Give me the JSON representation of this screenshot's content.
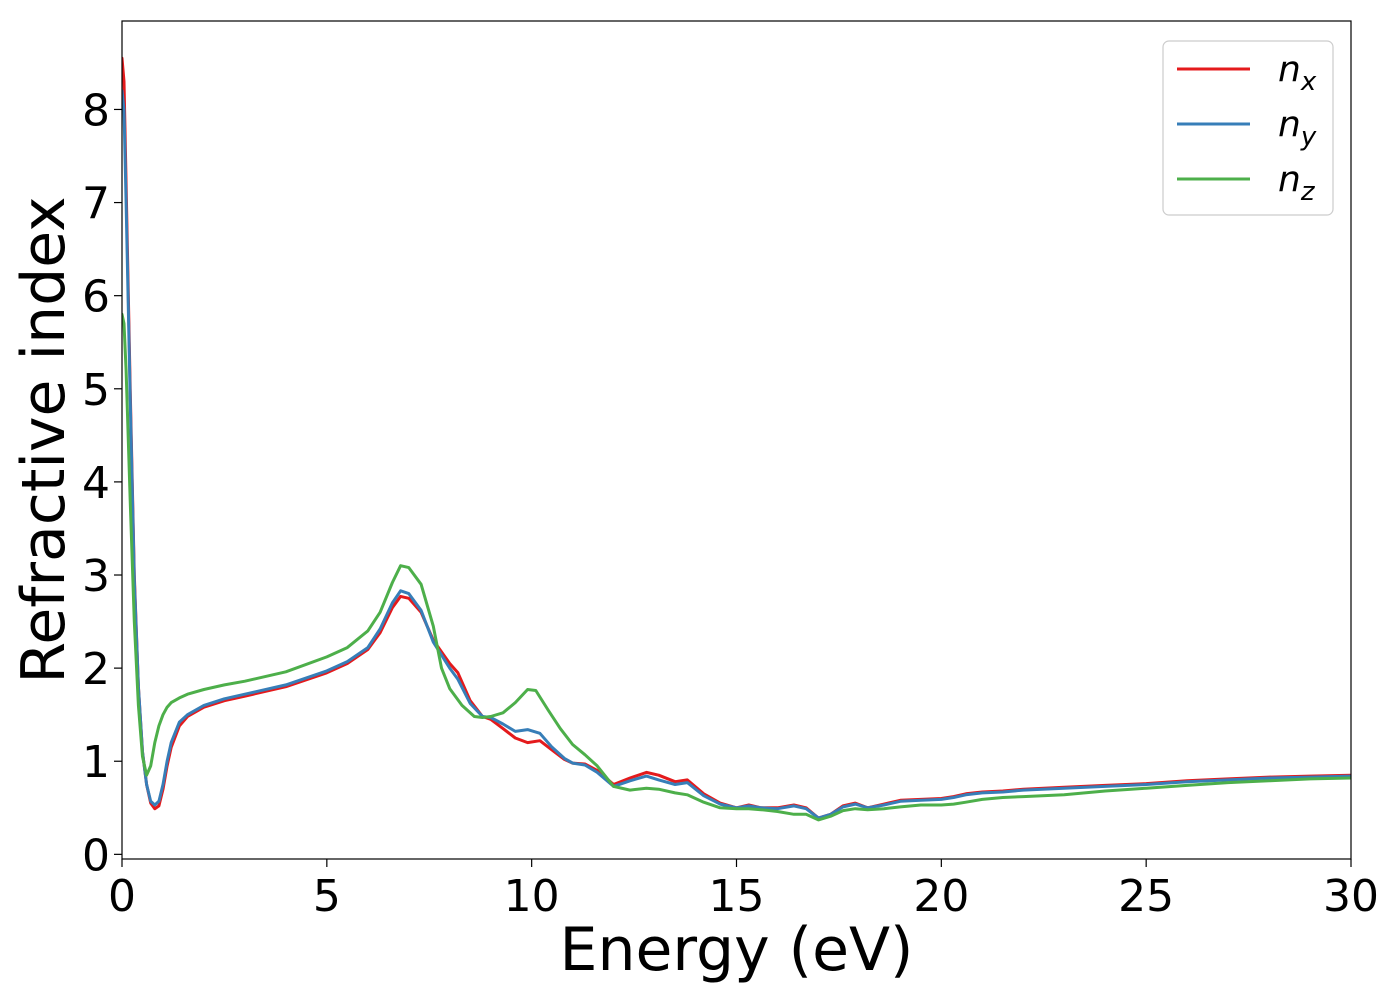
{
  "chart_data": {
    "type": "line",
    "xlabel": "Energy (eV)",
    "ylabel": "Refractive index",
    "xlim": [
      0,
      30
    ],
    "ylim": [
      -0.05,
      8.95
    ],
    "xticks": [
      0,
      5,
      10,
      15,
      20,
      25,
      30
    ],
    "yticks": [
      0,
      1,
      2,
      3,
      4,
      5,
      6,
      7,
      8
    ],
    "grid": false,
    "legend_position": "top-right",
    "series": [
      {
        "name": "n",
        "subscript": "x",
        "color": "#e41a1c",
        "x": [
          0,
          0.05,
          0.1,
          0.2,
          0.3,
          0.4,
          0.5,
          0.6,
          0.7,
          0.8,
          0.9,
          1.0,
          1.1,
          1.2,
          1.4,
          1.6,
          2,
          2.5,
          3,
          4,
          5,
          5.5,
          6,
          6.3,
          6.6,
          6.8,
          7.0,
          7.3,
          7.6,
          8.0,
          8.2,
          8.5,
          8.8,
          9.0,
          9.3,
          9.6,
          9.9,
          10.2,
          10.5,
          10.8,
          11.0,
          11.3,
          11.6,
          12.0,
          12.4,
          12.8,
          13.1,
          13.5,
          13.8,
          14.2,
          14.6,
          15.0,
          15.3,
          15.6,
          16.0,
          16.4,
          16.7,
          17.0,
          17.3,
          17.6,
          17.9,
          18.2,
          18.6,
          19.0,
          19.5,
          20.0,
          20.3,
          20.6,
          21.0,
          21.5,
          22,
          23,
          24,
          25,
          26,
          27,
          28,
          29,
          30
        ],
        "y": [
          8.55,
          8.3,
          7.2,
          5.0,
          3.0,
          1.8,
          1.1,
          0.75,
          0.55,
          0.49,
          0.52,
          0.7,
          0.95,
          1.15,
          1.38,
          1.48,
          1.58,
          1.65,
          1.7,
          1.8,
          1.95,
          2.05,
          2.2,
          2.38,
          2.65,
          2.77,
          2.75,
          2.6,
          2.3,
          2.05,
          1.95,
          1.65,
          1.48,
          1.45,
          1.35,
          1.25,
          1.2,
          1.22,
          1.12,
          1.02,
          0.98,
          0.97,
          0.9,
          0.75,
          0.82,
          0.88,
          0.85,
          0.78,
          0.8,
          0.65,
          0.55,
          0.5,
          0.53,
          0.5,
          0.5,
          0.53,
          0.5,
          0.39,
          0.43,
          0.52,
          0.55,
          0.5,
          0.54,
          0.58,
          0.59,
          0.6,
          0.62,
          0.65,
          0.67,
          0.68,
          0.7,
          0.72,
          0.74,
          0.76,
          0.79,
          0.81,
          0.83,
          0.84,
          0.85
        ]
      },
      {
        "name": "n",
        "subscript": "y",
        "color": "#377eb8",
        "x": [
          0,
          0.05,
          0.1,
          0.2,
          0.3,
          0.4,
          0.5,
          0.6,
          0.7,
          0.8,
          0.9,
          1.0,
          1.1,
          1.2,
          1.4,
          1.6,
          2,
          2.5,
          3,
          4,
          5,
          5.5,
          6,
          6.3,
          6.6,
          6.8,
          7.0,
          7.3,
          7.6,
          8.0,
          8.2,
          8.5,
          8.8,
          9.0,
          9.3,
          9.6,
          9.9,
          10.2,
          10.5,
          10.8,
          11.0,
          11.3,
          11.6,
          12.0,
          12.4,
          12.8,
          13.1,
          13.5,
          13.8,
          14.2,
          14.6,
          15.0,
          15.3,
          15.6,
          16.0,
          16.4,
          16.7,
          17.0,
          17.3,
          17.6,
          17.9,
          18.2,
          18.6,
          19.0,
          19.5,
          20.0,
          20.3,
          20.6,
          21.0,
          21.5,
          22,
          23,
          24,
          25,
          26,
          27,
          28,
          29,
          30
        ],
        "y": [
          8.2,
          8.0,
          7.0,
          4.9,
          2.95,
          1.8,
          1.1,
          0.75,
          0.57,
          0.53,
          0.57,
          0.75,
          1.0,
          1.2,
          1.42,
          1.5,
          1.6,
          1.67,
          1.72,
          1.82,
          1.97,
          2.07,
          2.22,
          2.42,
          2.7,
          2.83,
          2.8,
          2.62,
          2.28,
          2.0,
          1.88,
          1.62,
          1.48,
          1.47,
          1.4,
          1.32,
          1.34,
          1.3,
          1.15,
          1.03,
          0.98,
          0.96,
          0.88,
          0.73,
          0.79,
          0.84,
          0.8,
          0.75,
          0.77,
          0.63,
          0.54,
          0.5,
          0.52,
          0.5,
          0.49,
          0.52,
          0.49,
          0.39,
          0.43,
          0.51,
          0.54,
          0.5,
          0.53,
          0.57,
          0.58,
          0.59,
          0.61,
          0.64,
          0.66,
          0.67,
          0.69,
          0.71,
          0.73,
          0.75,
          0.78,
          0.8,
          0.82,
          0.83,
          0.84
        ]
      },
      {
        "name": "n",
        "subscript": "z",
        "color": "#4daf4a",
        "x": [
          0,
          0.05,
          0.1,
          0.2,
          0.3,
          0.4,
          0.5,
          0.6,
          0.7,
          0.8,
          0.9,
          1.0,
          1.1,
          1.2,
          1.4,
          1.6,
          2,
          2.5,
          3,
          4,
          5,
          5.5,
          6,
          6.3,
          6.6,
          6.8,
          7.0,
          7.3,
          7.6,
          7.8,
          8.0,
          8.3,
          8.6,
          8.8,
          9.0,
          9.3,
          9.6,
          9.9,
          10.1,
          10.4,
          10.7,
          11.0,
          11.3,
          11.6,
          12.0,
          12.4,
          12.8,
          13.1,
          13.5,
          13.8,
          14.2,
          14.6,
          15.0,
          15.3,
          15.6,
          16.0,
          16.4,
          16.7,
          17.0,
          17.3,
          17.6,
          17.9,
          18.2,
          18.6,
          19.0,
          19.5,
          20.0,
          20.3,
          20.6,
          21.0,
          21.5,
          22,
          23,
          24,
          25,
          26,
          27,
          28,
          29,
          30
        ],
        "y": [
          5.8,
          5.7,
          5.2,
          3.8,
          2.5,
          1.6,
          1.05,
          0.85,
          0.95,
          1.2,
          1.38,
          1.5,
          1.58,
          1.63,
          1.68,
          1.72,
          1.77,
          1.82,
          1.86,
          1.96,
          2.12,
          2.22,
          2.4,
          2.6,
          2.92,
          3.1,
          3.08,
          2.9,
          2.45,
          2.0,
          1.78,
          1.6,
          1.48,
          1.47,
          1.48,
          1.52,
          1.63,
          1.77,
          1.76,
          1.55,
          1.35,
          1.18,
          1.07,
          0.95,
          0.73,
          0.69,
          0.71,
          0.7,
          0.66,
          0.64,
          0.56,
          0.5,
          0.49,
          0.49,
          0.48,
          0.46,
          0.43,
          0.43,
          0.37,
          0.41,
          0.47,
          0.49,
          0.48,
          0.49,
          0.51,
          0.53,
          0.53,
          0.54,
          0.56,
          0.59,
          0.61,
          0.62,
          0.64,
          0.68,
          0.71,
          0.74,
          0.77,
          0.79,
          0.81,
          0.82
        ]
      }
    ]
  }
}
